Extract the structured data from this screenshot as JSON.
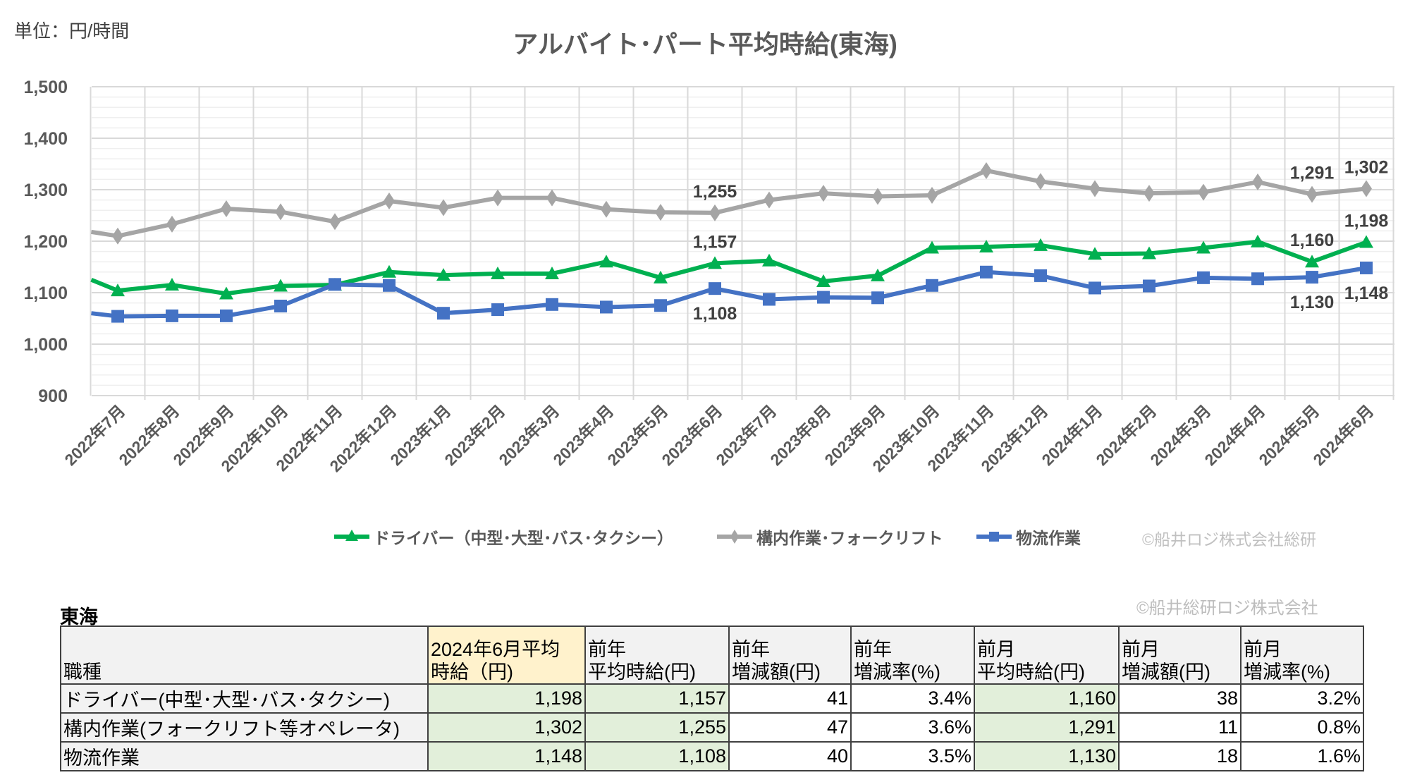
{
  "unit_label": "単位：円/時間",
  "chart_data": {
    "type": "line",
    "title": "アルバイト･パート平均時給(東海)",
    "categories": [
      "2022年7月",
      "2022年8月",
      "2022年9月",
      "2022年10月",
      "2022年11月",
      "2022年12月",
      "2023年1月",
      "2023年2月",
      "2023年3月",
      "2023年4月",
      "2023年5月",
      "2023年6月",
      "2023年7月",
      "2023年8月",
      "2023年9月",
      "2023年10月",
      "2023年11月",
      "2023年12月",
      "2024年1月",
      "2024年2月",
      "2024年3月",
      "2024年4月",
      "2024年5月",
      "2024年6月"
    ],
    "ylim": [
      900,
      1500
    ],
    "yticks": [
      "900",
      "1,000",
      "1,100",
      "1,200",
      "1,300",
      "1,400",
      "1,500"
    ],
    "grid": true,
    "legend_position": "bottom",
    "series": [
      {
        "name": "ドライバー（中型･大型･バス･タクシー）",
        "color": "#00b050",
        "marker": "triangle",
        "leading_value": 1125,
        "values": [
          1104,
          1115,
          1098,
          1113,
          1115,
          1140,
          1134,
          1137,
          1137,
          1160,
          1129,
          1157,
          1162,
          1122,
          1133,
          1187,
          1189,
          1192,
          1175,
          1176,
          1187,
          1199,
          1160,
          1198
        ]
      },
      {
        "name": "構内作業･フォークリフト",
        "color": "#a5a5a5",
        "marker": "diamond",
        "leading_value": 1218,
        "values": [
          1210,
          1233,
          1263,
          1257,
          1238,
          1278,
          1265,
          1284,
          1284,
          1262,
          1256,
          1255,
          1280,
          1293,
          1287,
          1289,
          1337,
          1316,
          1302,
          1293,
          1295,
          1315,
          1291,
          1302
        ]
      },
      {
        "name": "物流作業",
        "color": "#4472c4",
        "marker": "square",
        "leading_value": 1060,
        "values": [
          1054,
          1055,
          1055,
          1074,
          1116,
          1114,
          1060,
          1067,
          1077,
          1072,
          1075,
          1108,
          1087,
          1091,
          1090,
          1114,
          1140,
          1133,
          1109,
          1113,
          1129,
          1127,
          1130,
          1148
        ]
      }
    ],
    "data_labels": [
      {
        "series": 1,
        "category": "2023年6月",
        "text": "1,255",
        "position": "above"
      },
      {
        "series": 0,
        "category": "2023年6月",
        "text": "1,157",
        "position": "above"
      },
      {
        "series": 2,
        "category": "2023年6月",
        "text": "1,108",
        "position": "below"
      },
      {
        "series": 1,
        "category": "2024年5月",
        "text": "1,291",
        "position": "above"
      },
      {
        "series": 0,
        "category": "2024年5月",
        "text": "1,160",
        "position": "above"
      },
      {
        "series": 2,
        "category": "2024年5月",
        "text": "1,130",
        "position": "below"
      },
      {
        "series": 1,
        "category": "2024年6月",
        "text": "1,302",
        "position": "above"
      },
      {
        "series": 0,
        "category": "2024年6月",
        "text": "1,198",
        "position": "above"
      },
      {
        "series": 2,
        "category": "2024年6月",
        "text": "1,148",
        "position": "below"
      }
    ]
  },
  "legend_copyright": "©船井ロジ株式会社総研",
  "table_copyright": "©船井総研ロジ株式会社",
  "table": {
    "region": "東海",
    "headers": [
      {
        "line1": "職種",
        "line2": ""
      },
      {
        "line1": "2024年6月平均",
        "line2": "時給（円)"
      },
      {
        "line1": "前年",
        "line2": "平均時給(円)"
      },
      {
        "line1": "前年",
        "line2": "増減額(円)"
      },
      {
        "line1": "前年",
        "line2": "増減率(%)"
      },
      {
        "line1": "前月",
        "line2": "平均時給(円)"
      },
      {
        "line1": "前月",
        "line2": "増減額(円)"
      },
      {
        "line1": "前月",
        "line2": "増減率(%)"
      }
    ],
    "rows": [
      [
        "ドライバー(中型･大型･バス･タクシー)",
        "1,198",
        "1,157",
        "41",
        "3.4%",
        "1,160",
        "38",
        "3.2%"
      ],
      [
        "構内作業(フォークリフト等オペレータ)",
        "1,302",
        "1,255",
        "47",
        "3.6%",
        "1,291",
        "11",
        "0.8%"
      ],
      [
        "物流作業",
        "1,148",
        "1,108",
        "40",
        "3.5%",
        "1,130",
        "18",
        "1.6%"
      ]
    ]
  }
}
